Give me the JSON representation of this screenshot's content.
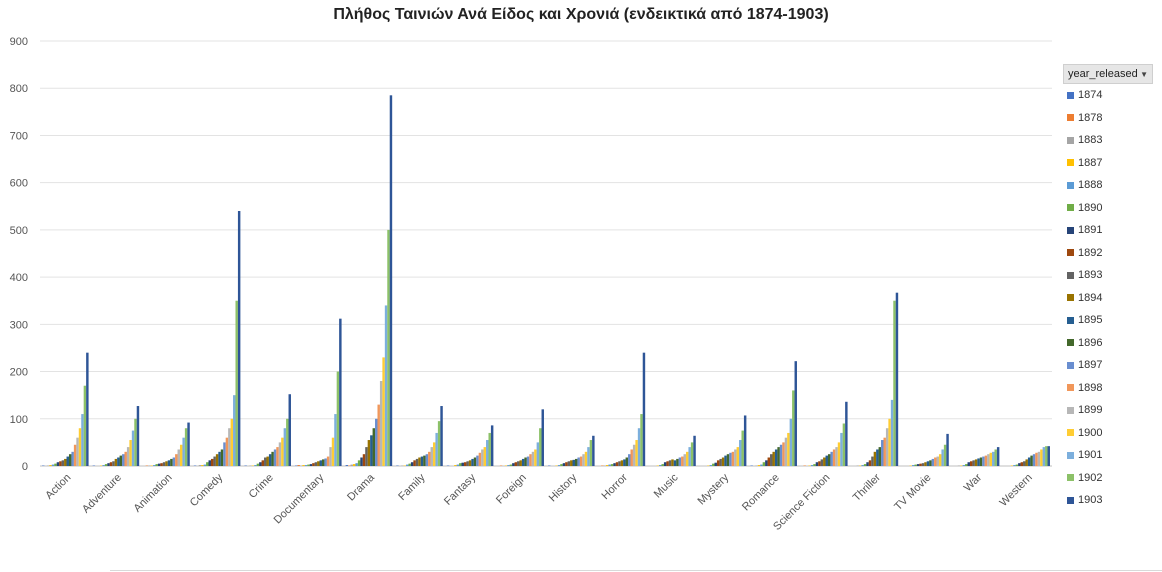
{
  "chart_data": {
    "type": "bar",
    "title": "Πλήθος Ταινιών Ανά Είδος και Χρονιά (ενδεικτικά από 1874-1903)",
    "xlabel": "",
    "ylabel": "",
    "ylim": [
      0,
      900
    ],
    "yticks": [
      0,
      100,
      200,
      300,
      400,
      500,
      600,
      700,
      800,
      900
    ],
    "grid": true,
    "legend_title": "year_released",
    "legend_position": "right",
    "categories": [
      "Action",
      "Adventure",
      "Animation",
      "Comedy",
      "Crime",
      "Documentary",
      "Drama",
      "Family",
      "Fantasy",
      "Foreign",
      "History",
      "Horror",
      "Music",
      "Mystery",
      "Romance",
      "Science Fiction",
      "Thriller",
      "TV Movie",
      "War",
      "Western"
    ],
    "series": [
      {
        "name": "1874",
        "color": "#4472c4",
        "values": [
          1,
          1,
          0,
          1,
          1,
          1,
          2,
          1,
          1,
          0,
          1,
          0,
          0,
          0,
          1,
          0,
          0,
          0,
          0,
          0
        ]
      },
      {
        "name": "1878",
        "color": "#ed7d31",
        "values": [
          0,
          0,
          1,
          0,
          0,
          2,
          1,
          0,
          0,
          1,
          0,
          1,
          0,
          0,
          0,
          1,
          0,
          0,
          0,
          0
        ]
      },
      {
        "name": "1883",
        "color": "#a5a5a5",
        "values": [
          1,
          0,
          1,
          2,
          1,
          1,
          3,
          1,
          0,
          0,
          0,
          1,
          0,
          0,
          1,
          0,
          1,
          0,
          1,
          0
        ]
      },
      {
        "name": "1887",
        "color": "#ffc000",
        "values": [
          2,
          1,
          1,
          2,
          1,
          2,
          4,
          1,
          2,
          1,
          1,
          2,
          1,
          1,
          2,
          1,
          1,
          1,
          1,
          1
        ]
      },
      {
        "name": "1888",
        "color": "#5b9bd5",
        "values": [
          3,
          2,
          2,
          3,
          2,
          2,
          6,
          3,
          3,
          2,
          2,
          3,
          2,
          2,
          3,
          2,
          2,
          2,
          2,
          2
        ]
      },
      {
        "name": "1890",
        "color": "#70ad47",
        "values": [
          5,
          4,
          4,
          8,
          5,
          3,
          12,
          5,
          6,
          3,
          4,
          4,
          4,
          5,
          8,
          4,
          4,
          3,
          4,
          3
        ]
      },
      {
        "name": "1891",
        "color": "#264478",
        "values": [
          8,
          6,
          5,
          12,
          8,
          4,
          18,
          8,
          7,
          6,
          6,
          6,
          8,
          7,
          12,
          8,
          8,
          4,
          8,
          6
        ]
      },
      {
        "name": "1892",
        "color": "#9e480e",
        "values": [
          10,
          8,
          6,
          15,
          12,
          6,
          25,
          12,
          8,
          8,
          8,
          8,
          10,
          12,
          18,
          10,
          12,
          5,
          10,
          8
        ]
      },
      {
        "name": "1893",
        "color": "#636363",
        "values": [
          12,
          10,
          8,
          20,
          18,
          8,
          40,
          15,
          10,
          10,
          10,
          10,
          12,
          15,
          25,
          14,
          20,
          6,
          12,
          10
        ]
      },
      {
        "name": "1894",
        "color": "#997300",
        "values": [
          15,
          15,
          10,
          25,
          20,
          10,
          55,
          18,
          12,
          12,
          12,
          12,
          14,
          18,
          30,
          18,
          30,
          8,
          14,
          14
        ]
      },
      {
        "name": "1895",
        "color": "#255e91",
        "values": [
          20,
          18,
          12,
          30,
          25,
          12,
          65,
          20,
          15,
          15,
          13,
          14,
          12,
          22,
          35,
          22,
          35,
          10,
          16,
          18
        ]
      },
      {
        "name": "1896",
        "color": "#43682b",
        "values": [
          25,
          22,
          15,
          35,
          30,
          14,
          80,
          22,
          18,
          18,
          15,
          18,
          15,
          25,
          40,
          25,
          40,
          12,
          18,
          22
        ]
      },
      {
        "name": "1897",
        "color": "#698ed0",
        "values": [
          30,
          25,
          18,
          50,
          35,
          16,
          100,
          25,
          22,
          20,
          18,
          25,
          18,
          28,
          45,
          30,
          55,
          15,
          20,
          25
        ]
      },
      {
        "name": "1898",
        "color": "#f1975a",
        "values": [
          45,
          30,
          25,
          60,
          40,
          20,
          130,
          30,
          28,
          25,
          20,
          35,
          20,
          30,
          50,
          35,
          60,
          18,
          22,
          28
        ]
      },
      {
        "name": "1899",
        "color": "#b7b7b7",
        "values": [
          60,
          40,
          35,
          80,
          50,
          40,
          180,
          40,
          35,
          30,
          25,
          45,
          25,
          35,
          60,
          40,
          80,
          20,
          25,
          30
        ]
      },
      {
        "name": "1900",
        "color": "#ffcd33",
        "values": [
          80,
          55,
          45,
          100,
          60,
          60,
          230,
          50,
          40,
          35,
          30,
          55,
          30,
          40,
          70,
          50,
          100,
          25,
          28,
          35
        ]
      },
      {
        "name": "1901",
        "color": "#7cafdd",
        "values": [
          110,
          75,
          60,
          150,
          80,
          110,
          340,
          70,
          55,
          50,
          40,
          80,
          40,
          55,
          100,
          70,
          140,
          35,
          30,
          40
        ]
      },
      {
        "name": "1902",
        "color": "#8cc168",
        "values": [
          170,
          100,
          80,
          350,
          100,
          200,
          500,
          95,
          70,
          80,
          55,
          110,
          50,
          75,
          160,
          90,
          350,
          45,
          35,
          42
        ]
      },
      {
        "name": "1903",
        "color": "#2e5597",
        "values": [
          240,
          127,
          92,
          540,
          152,
          312,
          785,
          127,
          86,
          120,
          64,
          240,
          64,
          107,
          222,
          136,
          367,
          68,
          40,
          42
        ]
      }
    ]
  }
}
